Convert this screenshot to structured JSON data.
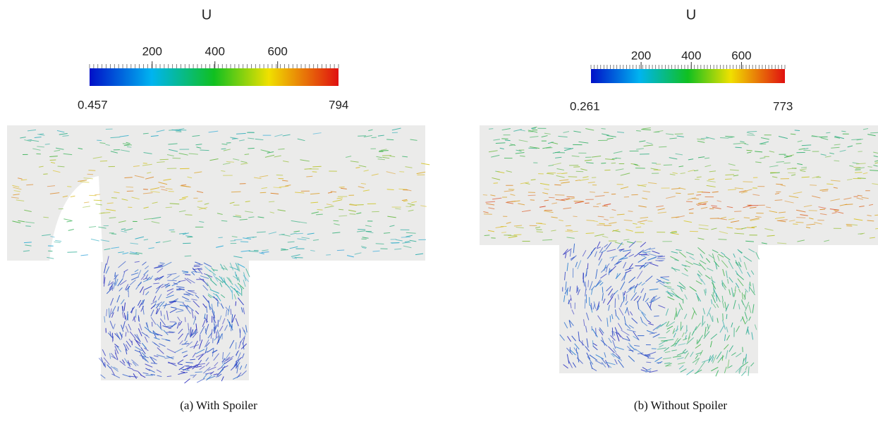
{
  "panels": [
    {
      "colorbar": {
        "title": "U",
        "range": [
          0.457,
          794
        ],
        "ticks": [
          200,
          400,
          600
        ]
      },
      "caption": "(a) With Spoiler"
    },
    {
      "colorbar": {
        "title": "U",
        "range": [
          0.261,
          773
        ],
        "ticks": [
          200,
          400,
          600
        ]
      },
      "caption": "(b) Without Spoiler"
    }
  ]
}
